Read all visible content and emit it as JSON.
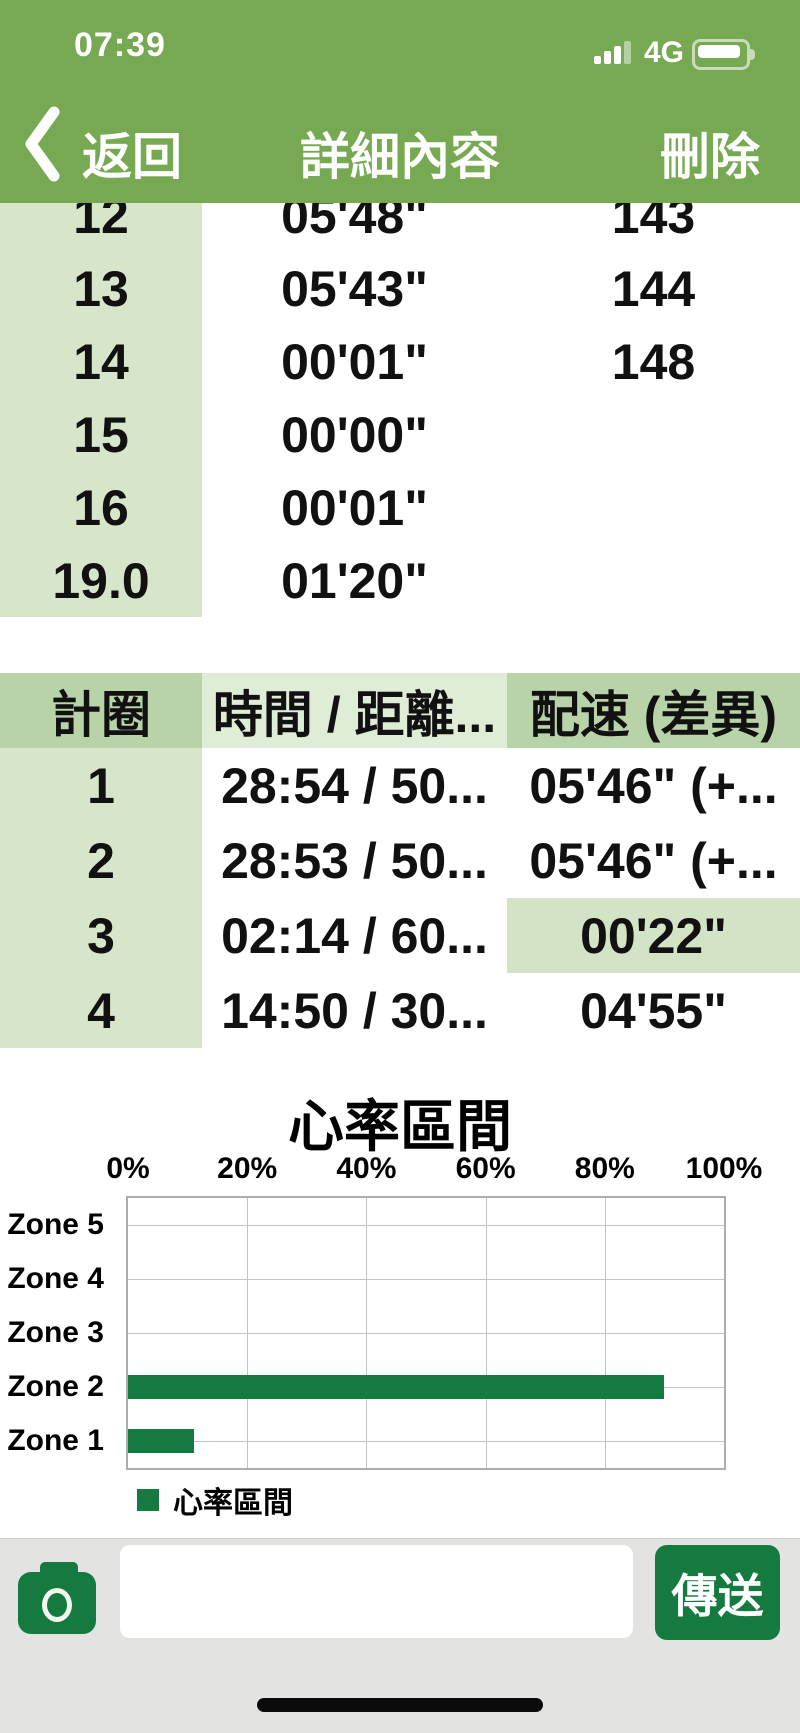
{
  "status_bar": {
    "time": "07:39",
    "network": "4G"
  },
  "nav_bar": {
    "back_label": "返回",
    "title": "詳細內容",
    "delete_label": "刪除"
  },
  "splits_table": {
    "rows": [
      {
        "lap": "12",
        "time": "05'48\"",
        "hr": "143"
      },
      {
        "lap": "13",
        "time": "05'43\"",
        "hr": "144"
      },
      {
        "lap": "14",
        "time": "00'01\"",
        "hr": "148"
      },
      {
        "lap": "15",
        "time": "00'00\"",
        "hr": ""
      },
      {
        "lap": "16",
        "time": "00'01\"",
        "hr": ""
      },
      {
        "lap": "19.0",
        "time": "01'20\"",
        "hr": ""
      }
    ]
  },
  "lap_table": {
    "headers": {
      "lap": "計圈",
      "time_distance": "時間 / 距離...",
      "pace": "配速 (差異)"
    },
    "rows": [
      {
        "lap": "1",
        "time_distance": "28:54 / 50...",
        "pace": "05'46\" (+..."
      },
      {
        "lap": "2",
        "time_distance": "28:53 / 50...",
        "pace": "05'46\" (+..."
      },
      {
        "lap": "3",
        "time_distance": "02:14 / 60...",
        "pace": "00'22\""
      },
      {
        "lap": "4",
        "time_distance": "14:50 / 30...",
        "pace": "04'55\""
      }
    ]
  },
  "chart_data": {
    "type": "bar",
    "orientation": "horizontal",
    "title": "心率區間",
    "categories": [
      "Zone 5",
      "Zone 4",
      "Zone 3",
      "Zone 2",
      "Zone 1"
    ],
    "values": [
      0,
      0,
      0,
      90,
      11
    ],
    "series_name": "心率區間",
    "x_ticks": [
      "0%",
      "20%",
      "40%",
      "60%",
      "80%",
      "100%"
    ],
    "xlim": [
      0,
      100
    ],
    "grid": true,
    "legend_position": "bottom-left",
    "bar_color": "#147a40"
  },
  "composer": {
    "send_label": "傳送",
    "input_value": "",
    "input_placeholder": ""
  },
  "colors": {
    "nav_green": "#77a952",
    "cell_green_light": "#d7e6ca",
    "header_green": "#b9d3a9",
    "header_green_pale": "#dfecd6",
    "highlight_green": "#d3e3c5",
    "accent_dark_green": "#147a40",
    "composer_bg": "#e3e3e2"
  }
}
